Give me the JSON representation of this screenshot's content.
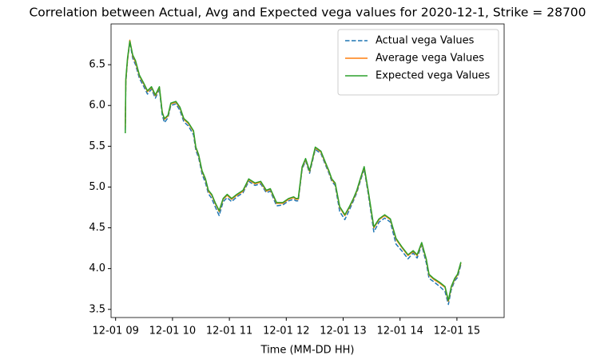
{
  "chart_data": {
    "type": "line",
    "title": "Correlation between Actual, Avg and Expected vega values for 2020-12-1, Strike = 28700",
    "x_label": "Time (MM-DD HH)",
    "x": [
      9.17,
      9.18,
      9.21,
      9.25,
      9.3,
      9.35,
      9.42,
      9.49,
      9.56,
      9.63,
      9.7,
      9.77,
      9.82,
      9.86,
      9.92,
      9.97,
      10.06,
      10.13,
      10.2,
      10.28,
      10.37,
      10.41,
      10.46,
      10.52,
      10.58,
      10.63,
      10.69,
      10.75,
      10.82,
      10.89,
      10.96,
      11.04,
      11.13,
      11.24,
      11.34,
      11.45,
      11.55,
      11.65,
      11.72,
      11.83,
      11.94,
      12.04,
      12.13,
      12.17,
      12.21,
      12.28,
      12.34,
      12.41,
      12.51,
      12.61,
      12.69,
      12.75,
      12.8,
      12.86,
      12.94,
      13.03,
      13.11,
      13.18,
      13.24,
      13.3,
      13.37,
      13.44,
      13.54,
      13.63,
      13.73,
      13.83,
      13.93,
      14.03,
      14.14,
      14.23,
      14.3,
      14.38,
      14.46,
      14.51,
      14.59,
      14.7,
      14.79,
      14.85,
      14.9,
      14.96,
      15.01,
      15.07
    ],
    "series": [
      {
        "name": "Actual vega Values",
        "color": "#1f77b4",
        "linestyle": "dashed",
        "values": [
          5.7,
          6.28,
          6.55,
          6.78,
          6.58,
          6.5,
          6.33,
          6.24,
          6.14,
          6.2,
          6.09,
          6.2,
          5.88,
          5.79,
          5.85,
          6.0,
          6.02,
          5.94,
          5.8,
          5.75,
          5.64,
          5.45,
          5.36,
          5.16,
          5.05,
          4.92,
          4.86,
          4.76,
          4.65,
          4.82,
          4.87,
          4.82,
          4.88,
          4.93,
          5.07,
          5.02,
          5.04,
          4.93,
          4.95,
          4.77,
          4.78,
          4.83,
          4.85,
          4.83,
          4.83,
          5.22,
          5.32,
          5.17,
          5.46,
          5.41,
          5.27,
          5.17,
          5.07,
          5.02,
          4.7,
          4.6,
          4.72,
          4.83,
          4.93,
          5.07,
          5.22,
          4.92,
          4.45,
          4.57,
          4.62,
          4.57,
          4.3,
          4.22,
          4.12,
          4.19,
          4.13,
          4.29,
          4.07,
          3.88,
          3.84,
          3.78,
          3.72,
          3.56,
          3.74,
          3.85,
          3.89,
          4.05
        ]
      },
      {
        "name": "Average vega Values",
        "color": "#ff7f0e",
        "linestyle": "solid",
        "values": [
          5.73,
          6.31,
          6.56,
          6.8,
          6.61,
          6.53,
          6.36,
          6.27,
          6.17,
          6.22,
          6.12,
          6.22,
          5.92,
          5.83,
          5.87,
          6.02,
          6.04,
          5.97,
          5.83,
          5.78,
          5.68,
          5.48,
          5.39,
          5.19,
          5.09,
          4.95,
          4.9,
          4.8,
          4.7,
          4.85,
          4.9,
          4.85,
          4.9,
          4.95,
          5.09,
          5.04,
          5.06,
          4.95,
          4.97,
          4.8,
          4.8,
          4.85,
          4.87,
          4.85,
          4.85,
          5.24,
          5.34,
          5.19,
          5.48,
          5.43,
          5.29,
          5.19,
          5.09,
          5.04,
          4.75,
          4.65,
          4.75,
          4.85,
          4.95,
          5.09,
          5.24,
          4.95,
          4.5,
          4.6,
          4.65,
          4.6,
          4.36,
          4.26,
          4.16,
          4.21,
          4.16,
          4.31,
          4.11,
          3.92,
          3.87,
          3.82,
          3.77,
          3.6,
          3.77,
          3.87,
          3.92,
          4.07
        ]
      },
      {
        "name": "Expected vega Values",
        "color": "#2ca02c",
        "linestyle": "solid",
        "values": [
          5.66,
          6.33,
          6.58,
          6.79,
          6.62,
          6.55,
          6.37,
          6.28,
          6.18,
          6.23,
          6.13,
          6.23,
          5.91,
          5.84,
          5.88,
          6.03,
          6.05,
          5.98,
          5.84,
          5.79,
          5.69,
          5.49,
          5.4,
          5.2,
          5.1,
          4.96,
          4.91,
          4.81,
          4.71,
          4.86,
          4.91,
          4.86,
          4.91,
          4.96,
          5.1,
          5.05,
          5.07,
          4.96,
          4.98,
          4.81,
          4.81,
          4.86,
          4.88,
          4.86,
          4.86,
          5.25,
          5.35,
          5.2,
          5.49,
          5.44,
          5.3,
          5.2,
          5.1,
          5.05,
          4.76,
          4.66,
          4.76,
          4.86,
          4.96,
          5.1,
          5.25,
          4.96,
          4.51,
          4.61,
          4.66,
          4.61,
          4.37,
          4.27,
          4.17,
          4.22,
          4.17,
          4.32,
          4.12,
          3.93,
          3.88,
          3.83,
          3.78,
          3.61,
          3.78,
          3.88,
          3.93,
          4.08
        ]
      }
    ],
    "xlim": [
      8.92,
      15.83
    ],
    "xticks": [
      {
        "value": 9,
        "label": "12-01 09"
      },
      {
        "value": 10,
        "label": "12-01 10"
      },
      {
        "value": 11,
        "label": "12-01 11"
      },
      {
        "value": 12,
        "label": "12-01 12"
      },
      {
        "value": 13,
        "label": "12-01 13"
      },
      {
        "value": 14,
        "label": "12-01 14"
      },
      {
        "value": 15,
        "label": "12-01 15"
      }
    ],
    "ylim": [
      3.4,
      7.0
    ],
    "yticks": [
      3.5,
      {
        "value": 4,
        "label": "4.0"
      },
      4.5,
      {
        "value": 5,
        "label": "5.0"
      },
      5.5,
      {
        "value": 6,
        "label": "6.0"
      },
      6.5
    ],
    "grid": false,
    "legend": "upper right"
  }
}
